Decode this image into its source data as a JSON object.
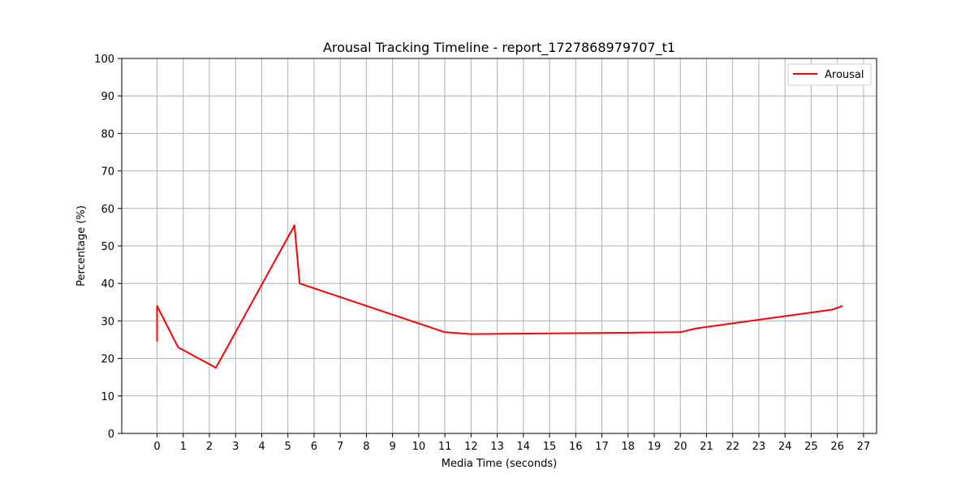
{
  "chart_data": {
    "type": "line",
    "title": "Arousal Tracking Timeline - report_1727868979707_t1",
    "xlabel": "Media Time (seconds)",
    "ylabel": "Percentage (%)",
    "xlim": [
      -1.35,
      27.5
    ],
    "ylim": [
      0,
      100
    ],
    "xticks": [
      0,
      1,
      2,
      3,
      4,
      5,
      6,
      7,
      8,
      9,
      10,
      11,
      12,
      13,
      14,
      15,
      16,
      17,
      18,
      19,
      20,
      21,
      22,
      23,
      24,
      25,
      26,
      27
    ],
    "yticks": [
      0,
      10,
      20,
      30,
      40,
      50,
      60,
      70,
      80,
      90,
      100
    ],
    "grid": true,
    "legend_position": "top-right",
    "series": [
      {
        "name": "Arousal",
        "color": "#ff0000",
        "x": [
          0.0,
          0.0,
          0.8,
          2.25,
          5.25,
          5.45,
          11.0,
          12.0,
          20.0,
          20.6,
          25.8,
          26.2
        ],
        "y": [
          24.5,
          34.0,
          23.0,
          17.5,
          55.5,
          40.0,
          27.0,
          26.5,
          27.0,
          28.0,
          33.0,
          34.0
        ]
      }
    ]
  }
}
